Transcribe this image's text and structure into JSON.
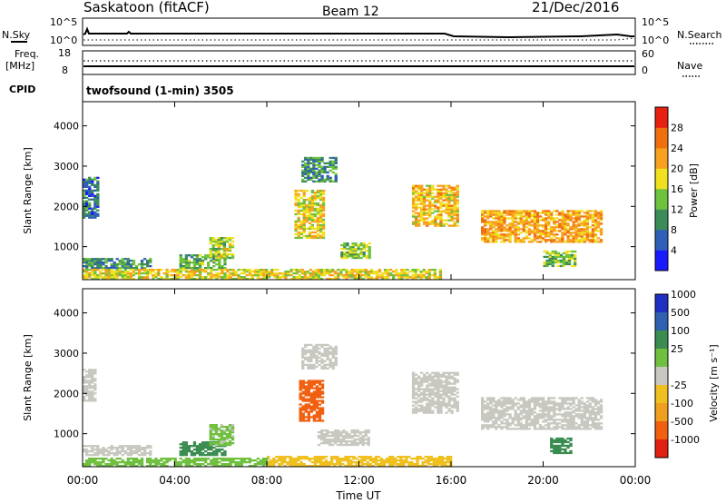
{
  "header": {
    "site": "Saskatoon (fitACF)",
    "beam": "Beam 12",
    "date": "21/Dec/2016"
  },
  "panels": {
    "nsky_label": "N.Sky",
    "nsky_ticks": [
      "10^5",
      "10^0"
    ],
    "nsearch_label": "N.Search",
    "nsearch_ticks": [
      "10^5",
      "10^0"
    ],
    "freq_label": "Freq.",
    "freq_unit": "[MHz]",
    "freq_ticks": [
      "18",
      "8"
    ],
    "nave_label": "Nave",
    "nave_ticks": [
      "60",
      "0"
    ],
    "cpid_label": "CPID",
    "cpid_text": "twofsound (1-min) 3505"
  },
  "colors": {
    "power": [
      "#1a1aff",
      "#2f5fb8",
      "#3c8c5a",
      "#6ec23c",
      "#f0e020",
      "#f8a020",
      "#f07010",
      "#e82010"
    ],
    "velocity": [
      "#2030c0",
      "#3060b0",
      "#3a8c50",
      "#70c040",
      "#c8c8c0",
      "#f0c020",
      "#f0a020",
      "#f06010",
      "#e02010"
    ],
    "ground_scatter": "#c8c8c0"
  },
  "chart_data": [
    {
      "type": "heatmap",
      "name": "power",
      "xlabel": "Time UT",
      "ylabel": "Slant Range [km]",
      "xlim_hours": [
        0,
        24
      ],
      "ylim_km": [
        180,
        4600
      ],
      "x_ticks": [
        "00:00",
        "04:00",
        "08:00",
        "12:00",
        "16:00",
        "20:00",
        "00:00"
      ],
      "y_ticks": [
        1000,
        2000,
        3000,
        4000
      ],
      "colorbar": {
        "label": "Power [dB]",
        "ticks": [
          "4",
          "8",
          "12",
          "16",
          "20",
          "24",
          "28"
        ],
        "range": [
          0,
          32
        ]
      },
      "regions": [
        {
          "t0": 0.0,
          "t1": 3.0,
          "r0": 450,
          "r1": 700,
          "level": 10
        },
        {
          "t0": 4.2,
          "t1": 6.2,
          "r0": 450,
          "r1": 800,
          "level": 12
        },
        {
          "t0": 5.5,
          "t1": 6.5,
          "r0": 700,
          "r1": 1200,
          "level": 16
        },
        {
          "t0": 9.2,
          "t1": 10.5,
          "r0": 1200,
          "r1": 2400,
          "level": 18
        },
        {
          "t0": 9.5,
          "t1": 11.0,
          "r0": 2600,
          "r1": 3200,
          "level": 10
        },
        {
          "t0": 11.2,
          "t1": 12.4,
          "r0": 700,
          "r1": 1100,
          "level": 14
        },
        {
          "t0": 14.3,
          "t1": 16.3,
          "r0": 1500,
          "r1": 2500,
          "level": 20
        },
        {
          "t0": 17.3,
          "t1": 22.5,
          "r0": 1100,
          "r1": 1900,
          "level": 22
        },
        {
          "t0": 20.0,
          "t1": 21.4,
          "r0": 500,
          "r1": 900,
          "level": 14
        },
        {
          "t0": 0.0,
          "t1": 0.7,
          "r0": 1700,
          "r1": 2700,
          "level": 8
        },
        {
          "t0": 0.0,
          "t1": 15.5,
          "r0": 180,
          "r1": 450,
          "level": 18
        }
      ]
    },
    {
      "type": "heatmap",
      "name": "velocity",
      "xlabel": "Time UT",
      "ylabel": "Slant Range [km]",
      "xlim_hours": [
        0,
        24
      ],
      "ylim_km": [
        180,
        4600
      ],
      "x_ticks": [
        "00:00",
        "04:00",
        "08:00",
        "12:00",
        "16:00",
        "20:00",
        "00:00"
      ],
      "y_ticks": [
        1000,
        2000,
        3000,
        4000
      ],
      "colorbar": {
        "label": "Velocity [m s⁻¹]",
        "ticks": [
          "1000",
          "500",
          "100",
          "25",
          "-25",
          "-100",
          "-500",
          "-1000"
        ],
        "range": [
          -1200,
          1200
        ]
      },
      "regions": [
        {
          "t0": 0.0,
          "t1": 3.0,
          "r0": 450,
          "r1": 700,
          "level": 0
        },
        {
          "t0": 4.2,
          "t1": 6.2,
          "r0": 450,
          "r1": 800,
          "level": 150
        },
        {
          "t0": 5.5,
          "t1": 6.5,
          "r0": 700,
          "r1": 1200,
          "level": 40
        },
        {
          "t0": 9.4,
          "t1": 10.4,
          "r0": 1300,
          "r1": 2300,
          "level": -800
        },
        {
          "t0": 9.5,
          "t1": 11.0,
          "r0": 2600,
          "r1": 3200,
          "level": 0
        },
        {
          "t0": 10.2,
          "t1": 12.4,
          "r0": 700,
          "r1": 1100,
          "level": 0
        },
        {
          "t0": 14.3,
          "t1": 16.3,
          "r0": 1500,
          "r1": 2500,
          "level": 0
        },
        {
          "t0": 17.3,
          "t1": 22.5,
          "r0": 1100,
          "r1": 1900,
          "level": 0
        },
        {
          "t0": 20.3,
          "t1": 21.2,
          "r0": 500,
          "r1": 900,
          "level": 150
        },
        {
          "t0": 0.0,
          "t1": 0.6,
          "r0": 1800,
          "r1": 2600,
          "level": 0
        },
        {
          "t0": 8.0,
          "t1": 16.0,
          "r0": 180,
          "r1": 450,
          "level": -70
        },
        {
          "t0": 0.0,
          "t1": 8.0,
          "r0": 180,
          "r1": 400,
          "level": 60
        }
      ]
    }
  ]
}
